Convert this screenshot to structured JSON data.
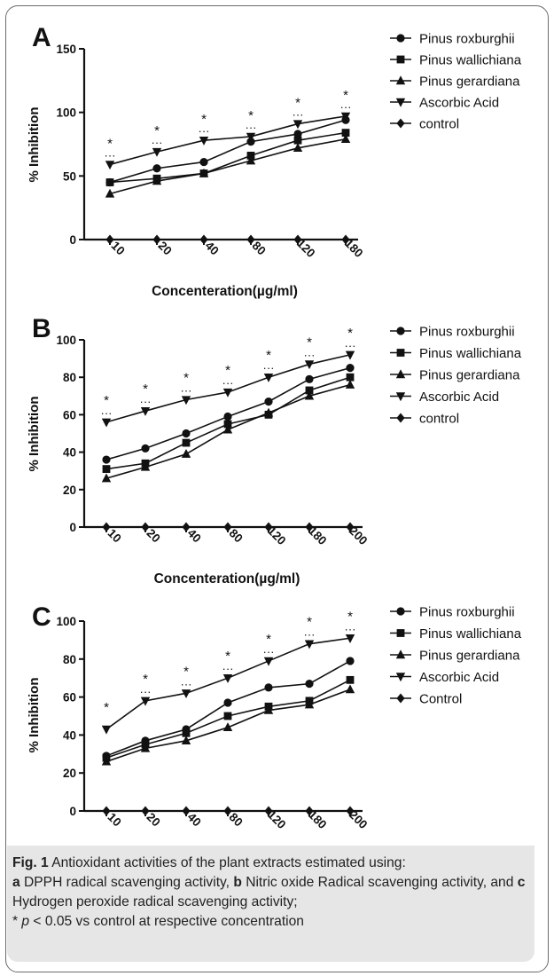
{
  "chart_data": [
    {
      "type": "line",
      "panel": "A",
      "ylabel": "% Inhibition",
      "xlabel": "Concenteration(µg/ml)",
      "ylim": [
        0,
        150
      ],
      "yticks": [
        "0",
        "50",
        "100",
        "150"
      ],
      "categories": [
        "10",
        "20",
        "40",
        "80",
        "120",
        "180"
      ],
      "series": [
        {
          "name": "Pinus roxburghii",
          "marker": "circle",
          "values": [
            45,
            56,
            61,
            77,
            83,
            94
          ]
        },
        {
          "name": "Pinus wallichiana",
          "marker": "square",
          "values": [
            45,
            48,
            52,
            66,
            78,
            84
          ]
        },
        {
          "name": "Pinus gerardiana",
          "marker": "triangle-up",
          "values": [
            36,
            46,
            52,
            62,
            72,
            79
          ]
        },
        {
          "name": "Ascorbic Acid",
          "marker": "triangle-down",
          "values": [
            59,
            69,
            78,
            81,
            91,
            97
          ]
        },
        {
          "name": "control",
          "marker": "diamond",
          "values": [
            0,
            0,
            0,
            0,
            0,
            0
          ]
        }
      ],
      "significance": {
        "star": "*",
        "dots": "···"
      }
    },
    {
      "type": "line",
      "panel": "B",
      "ylabel": "% Inhibition",
      "xlabel": "Concenteration(µg/ml)",
      "ylim": [
        0,
        100
      ],
      "yticks": [
        "0",
        "20",
        "40",
        "60",
        "80",
        "100"
      ],
      "categories": [
        "10",
        "20",
        "40",
        "80",
        "120",
        "180",
        "200"
      ],
      "series": [
        {
          "name": "Pinus roxburghii",
          "marker": "circle",
          "values": [
            36,
            42,
            50,
            59,
            67,
            79,
            85
          ]
        },
        {
          "name": "Pinus wallichiana",
          "marker": "square",
          "values": [
            31,
            34,
            45,
            55,
            60,
            73,
            80
          ]
        },
        {
          "name": "Pinus gerardiana",
          "marker": "triangle-up",
          "values": [
            26,
            32,
            39,
            52,
            61,
            70,
            76
          ]
        },
        {
          "name": "Ascorbic Acid",
          "marker": "triangle-down",
          "values": [
            56,
            62,
            68,
            72,
            80,
            87,
            92
          ]
        },
        {
          "name": "control",
          "marker": "diamond",
          "values": [
            0,
            0,
            0,
            0,
            0,
            0,
            0
          ]
        }
      ],
      "significance": {
        "star": "*",
        "dots": "···"
      }
    },
    {
      "type": "line",
      "panel": "C",
      "ylabel": "% Inhibition",
      "xlabel": "Concenteration(µg/ml)",
      "ylim": [
        0,
        100
      ],
      "yticks": [
        "0",
        "20",
        "40",
        "60",
        "80",
        "100"
      ],
      "categories": [
        "10",
        "20",
        "40",
        "80",
        "120",
        "180",
        "200"
      ],
      "series": [
        {
          "name": "Pinus roxburghii",
          "marker": "circle",
          "values": [
            29,
            37,
            43,
            57,
            65,
            67,
            79
          ]
        },
        {
          "name": "Pinus wallichiana",
          "marker": "square",
          "values": [
            28,
            35,
            41,
            50,
            55,
            58,
            69
          ]
        },
        {
          "name": "Pinus gerardiana",
          "marker": "triangle-up",
          "values": [
            26,
            33,
            37,
            44,
            53,
            56,
            64
          ]
        },
        {
          "name": "Ascorbic Acid",
          "marker": "triangle-down",
          "values": [
            43,
            58,
            62,
            70,
            79,
            88,
            91
          ]
        },
        {
          "name": "Control",
          "marker": "diamond",
          "values": [
            0,
            0,
            0,
            0,
            0,
            0,
            0
          ]
        }
      ],
      "significance": {
        "star": "*",
        "dots": "···"
      }
    }
  ],
  "caption": {
    "fig_label": "Fig. 1",
    "line1": " Antioxidant activities of the plant extracts estimated using:",
    "a_label": "a",
    "a_text": " DPPH radical scavenging activity, ",
    "b_label": "b",
    "b_text": " Nitric oxide Radical scavenging activity, and ",
    "c_label": "c",
    "c_text": " Hydrogen peroxide radical scavenging activity;",
    "footnote_star": "* ",
    "footnote_p": "p",
    "footnote_rest": " < 0.05 vs control at respective concentration"
  }
}
